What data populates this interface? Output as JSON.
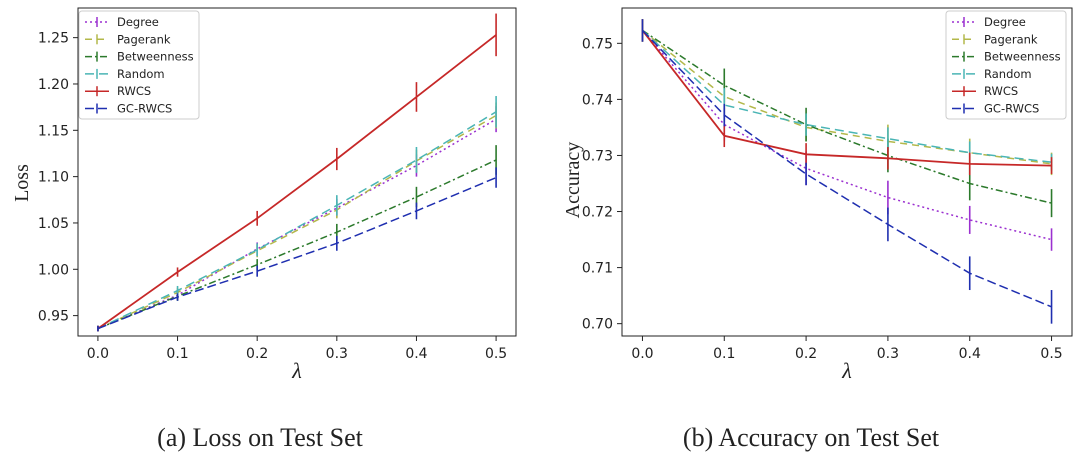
{
  "chart_data": [
    {
      "type": "line",
      "caption": "(a) Loss on Test Set",
      "xlabel": "λ",
      "ylabel": "Loss",
      "x": [
        0.0,
        0.1,
        0.2,
        0.3,
        0.4,
        0.5
      ],
      "xticks": [
        "0.0",
        "0.1",
        "0.2",
        "0.3",
        "0.4",
        "0.5"
      ],
      "yticks": [
        "0.95",
        "1.00",
        "1.05",
        "1.10",
        "1.15",
        "1.20",
        "1.25"
      ],
      "ylim": [
        0.928,
        1.282
      ],
      "legend": "top-left",
      "series": [
        {
          "name": "Degree",
          "color": "#9b30d0",
          "dash": "2,3",
          "values": [
            0.936,
            0.972,
            1.022,
            1.066,
            1.112,
            1.162
          ],
          "err": [
            0.003,
            0.005,
            0.007,
            0.01,
            0.012,
            0.014
          ]
        },
        {
          "name": "Pagerank",
          "color": "#b3b84a",
          "dash": "7,5",
          "values": [
            0.936,
            0.975,
            1.02,
            1.064,
            1.117,
            1.166
          ],
          "err": [
            0.003,
            0.005,
            0.007,
            0.009,
            0.012,
            0.014
          ]
        },
        {
          "name": "Betweenness",
          "color": "#2c7a2c",
          "dash": "7,3,2,3",
          "values": [
            0.936,
            0.971,
            1.005,
            1.04,
            1.078,
            1.118
          ],
          "err": [
            0.003,
            0.005,
            0.006,
            0.009,
            0.011,
            0.016
          ]
        },
        {
          "name": "Random",
          "color": "#4ab5b5",
          "dash": "9,5",
          "values": [
            0.936,
            0.977,
            1.021,
            1.069,
            1.118,
            1.17
          ],
          "err": [
            0.003,
            0.005,
            0.007,
            0.011,
            0.014,
            0.017
          ]
        },
        {
          "name": "RWCS",
          "color": "#c62828",
          "dash": "",
          "values": [
            0.936,
            0.997,
            1.055,
            1.119,
            1.186,
            1.253
          ],
          "err": [
            0.003,
            0.005,
            0.008,
            0.012,
            0.016,
            0.023
          ]
        },
        {
          "name": "GC-RWCS",
          "color": "#1f2fb0",
          "dash": "9,4",
          "values": [
            0.936,
            0.97,
            0.998,
            1.028,
            1.063,
            1.099
          ],
          "err": [
            0.003,
            0.004,
            0.006,
            0.008,
            0.009,
            0.011
          ]
        }
      ]
    },
    {
      "type": "line",
      "caption": "(b) Accuracy on Test Set",
      "xlabel": "λ",
      "ylabel": "Accuracy",
      "x": [
        0.0,
        0.1,
        0.2,
        0.3,
        0.4,
        0.5
      ],
      "xticks": [
        "0.0",
        "0.1",
        "0.2",
        "0.3",
        "0.4",
        "0.5"
      ],
      "yticks": [
        "0.70",
        "0.71",
        "0.72",
        "0.73",
        "0.74",
        "0.75"
      ],
      "ylim": [
        0.6978,
        0.7563
      ],
      "legend": "top-right",
      "series": [
        {
          "name": "Degree",
          "color": "#9b30d0",
          "dash": "2,3",
          "values": [
            0.7523,
            0.7355,
            0.7277,
            0.7225,
            0.7185,
            0.715
          ],
          "err": [
            0.002,
            0.003,
            0.003,
            0.003,
            0.0025,
            0.002
          ]
        },
        {
          "name": "Pagerank",
          "color": "#b3b84a",
          "dash": "7,5",
          "values": [
            0.7523,
            0.7405,
            0.735,
            0.7325,
            0.7305,
            0.7285
          ],
          "err": [
            0.002,
            0.003,
            0.0025,
            0.003,
            0.0025,
            0.002
          ]
        },
        {
          "name": "Betweenness",
          "color": "#2c7a2c",
          "dash": "7,3,2,3",
          "values": [
            0.7523,
            0.7425,
            0.7355,
            0.73,
            0.725,
            0.7215
          ],
          "err": [
            0.002,
            0.003,
            0.003,
            0.003,
            0.003,
            0.0025
          ]
        },
        {
          "name": "Random",
          "color": "#4ab5b5",
          "dash": "9,5",
          "values": [
            0.7523,
            0.739,
            0.7355,
            0.733,
            0.7305,
            0.7288
          ],
          "err": [
            0.002,
            0.003,
            0.002,
            0.002,
            0.002,
            0.0015
          ]
        },
        {
          "name": "RWCS",
          "color": "#c62828",
          "dash": "",
          "values": [
            0.7523,
            0.7335,
            0.7302,
            0.7295,
            0.7285,
            0.7282
          ],
          "err": [
            0.002,
            0.002,
            0.002,
            0.002,
            0.002,
            0.0015
          ]
        },
        {
          "name": "GC-RWCS",
          "color": "#1f2fb0",
          "dash": "9,4",
          "values": [
            0.7523,
            0.7372,
            0.7267,
            0.7177,
            0.709,
            0.703
          ],
          "err": [
            0.002,
            0.002,
            0.002,
            0.003,
            0.003,
            0.003
          ]
        }
      ]
    }
  ]
}
